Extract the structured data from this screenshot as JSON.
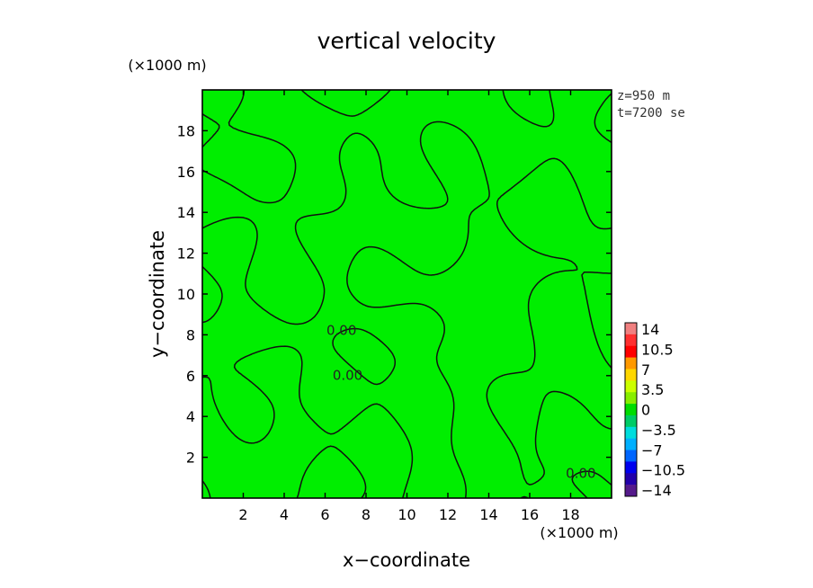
{
  "chart_data": {
    "type": "heatmap",
    "title": "vertical velocity",
    "xlabel": "x−coordinate",
    "ylabel": "y−coordinate",
    "x_unit": "(×1000 m)",
    "y_unit": "(×1000 m)",
    "xlim": [
      0,
      20
    ],
    "ylim": [
      0,
      20
    ],
    "x_ticks": [
      2,
      4,
      6,
      8,
      10,
      12,
      14,
      16,
      18
    ],
    "y_ticks": [
      2,
      4,
      6,
      8,
      10,
      12,
      14,
      16,
      18
    ],
    "annotations": [
      "z=950 m",
      "t=7200 se"
    ],
    "contour_level": 0,
    "contour_labels": [
      {
        "text": "0.00",
        "x": 6.8,
        "y": 8.0
      },
      {
        "text": "0.00",
        "x": 7.1,
        "y": 5.8
      },
      {
        "text": "0.00",
        "x": 18.5,
        "y": 1.0
      }
    ],
    "field_fill_color": "#00ee00",
    "contour_color": "#111111",
    "colorbar": {
      "levels": [
        "14",
        "10.5",
        "7",
        "3.5",
        "0",
        "−3.5",
        "−7",
        "−10.5",
        "−14"
      ],
      "colors": [
        "#f08080",
        "#ff3030",
        "#ff0000",
        "#ff9900",
        "#ffd700",
        "#ccff00",
        "#88ee00",
        "#00dd00",
        "#00cc66",
        "#00dddd",
        "#00b0ff",
        "#0066ff",
        "#0000ee",
        "#2200aa",
        "#551a8b"
      ]
    }
  }
}
